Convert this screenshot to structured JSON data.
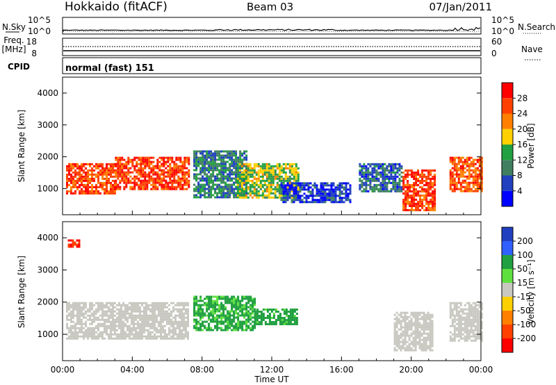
{
  "header": {
    "station": "Hokkaido (fitACF)",
    "beam": "Beam 03",
    "date": "07/Jan/2011"
  },
  "noise_panel": {
    "left_label": "N.Sky",
    "right_label": "N.Search",
    "left_ticks": [
      "10^5",
      "10^0"
    ],
    "right_ticks": [
      "10^5",
      "10^0"
    ]
  },
  "freq_panel": {
    "left_label_1": "Freq.",
    "left_label_2": "[MHz]",
    "right_label": "Nave",
    "left_ticks": [
      "18",
      "8"
    ],
    "right_ticks": [
      "60",
      "0"
    ]
  },
  "cpid_panel": {
    "label": "CPID",
    "text": "normal (fast) 151"
  },
  "colors": {
    "power_scale": [
      "#0000ff",
      "#2040c0",
      "#408060",
      "#20a040",
      "#ffd000",
      "#ff8000",
      "#ff4000",
      "#ff0000"
    ],
    "velocity_scale": [
      "#2040c0",
      "#3060ff",
      "#20a040",
      "#60e040",
      "#c8c8c0",
      "#ffd000",
      "#ff8000",
      "#ff4000",
      "#ff0000"
    ],
    "ground_scatter": "#c8c8c0"
  },
  "chart_data": [
    {
      "type": "heatmap",
      "name": "power",
      "xlabel": "",
      "ylabel": "Slant Range [km]",
      "xlim": [
        0,
        24
      ],
      "ylim": [
        180,
        4500
      ],
      "yticks": [
        1000,
        2000,
        3000,
        4000
      ],
      "colorbar": {
        "label": "Power [dB]",
        "ticks": [
          "4",
          "8",
          "12",
          "16",
          "20",
          "24",
          "28"
        ],
        "range": [
          0,
          32
        ]
      },
      "regions": [
        {
          "t0": 0.2,
          "t1": 3.0,
          "r0": 850,
          "r1": 1800,
          "value": 26
        },
        {
          "t0": 3.0,
          "t1": 7.2,
          "r0": 1000,
          "r1": 2000,
          "value": 27
        },
        {
          "t0": 7.5,
          "t1": 10.5,
          "r0": 700,
          "r1": 2200,
          "value": 10
        },
        {
          "t0": 10.0,
          "t1": 13.5,
          "r0": 700,
          "r1": 1800,
          "value": 16
        },
        {
          "t0": 12.5,
          "t1": 16.5,
          "r0": 600,
          "r1": 1200,
          "value": 5
        },
        {
          "t0": 17.0,
          "t1": 19.5,
          "r0": 900,
          "r1": 1800,
          "value": 8
        },
        {
          "t0": 19.5,
          "t1": 21.3,
          "r0": 300,
          "r1": 1600,
          "value": 27
        },
        {
          "t0": 22.2,
          "t1": 24.0,
          "r0": 900,
          "r1": 2000,
          "value": 25
        }
      ]
    },
    {
      "type": "heatmap",
      "name": "velocity",
      "xlabel": "Time UT",
      "ylabel": "Slant Range [km]",
      "xlim": [
        0,
        24
      ],
      "ylim": [
        180,
        4500
      ],
      "yticks": [
        1000,
        2000,
        3000,
        4000
      ],
      "xticks": [
        "00:00",
        "04:00",
        "08:00",
        "12:00",
        "16:00",
        "20:00",
        "00:00"
      ],
      "colorbar": {
        "label": "Velocity [m s⁻¹]",
        "ticks": [
          "200",
          "100",
          "50",
          "15",
          "-15",
          "-50",
          "-100",
          "-200"
        ],
        "range": [
          -250,
          250
        ]
      },
      "regions": [
        {
          "t0": 0.2,
          "t1": 7.2,
          "r0": 850,
          "r1": 2000,
          "value": 0
        },
        {
          "t0": 7.5,
          "t1": 11.0,
          "r0": 1100,
          "r1": 2200,
          "value": 40
        },
        {
          "t0": 11.0,
          "t1": 13.5,
          "r0": 1300,
          "r1": 1800,
          "value": 45
        },
        {
          "t0": 19.0,
          "t1": 21.2,
          "r0": 500,
          "r1": 1700,
          "value": 0
        },
        {
          "t0": 22.2,
          "t1": 24.0,
          "r0": 800,
          "r1": 2000,
          "value": 0
        },
        {
          "t0": 0.3,
          "t1": 1.0,
          "r0": 3750,
          "r1": 3950,
          "value": -220
        }
      ]
    }
  ]
}
